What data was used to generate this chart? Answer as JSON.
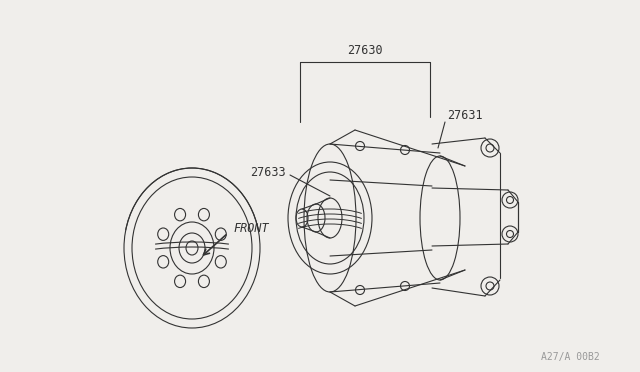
{
  "background_color": "#f0eeeb",
  "line_color": "#333333",
  "label_27630": "27630",
  "label_27631": "27631",
  "label_27633": "27633",
  "label_front": "FRONT",
  "watermark": "A27/A 00B2",
  "label_fontsize": 8.5,
  "watermark_fontsize": 7
}
